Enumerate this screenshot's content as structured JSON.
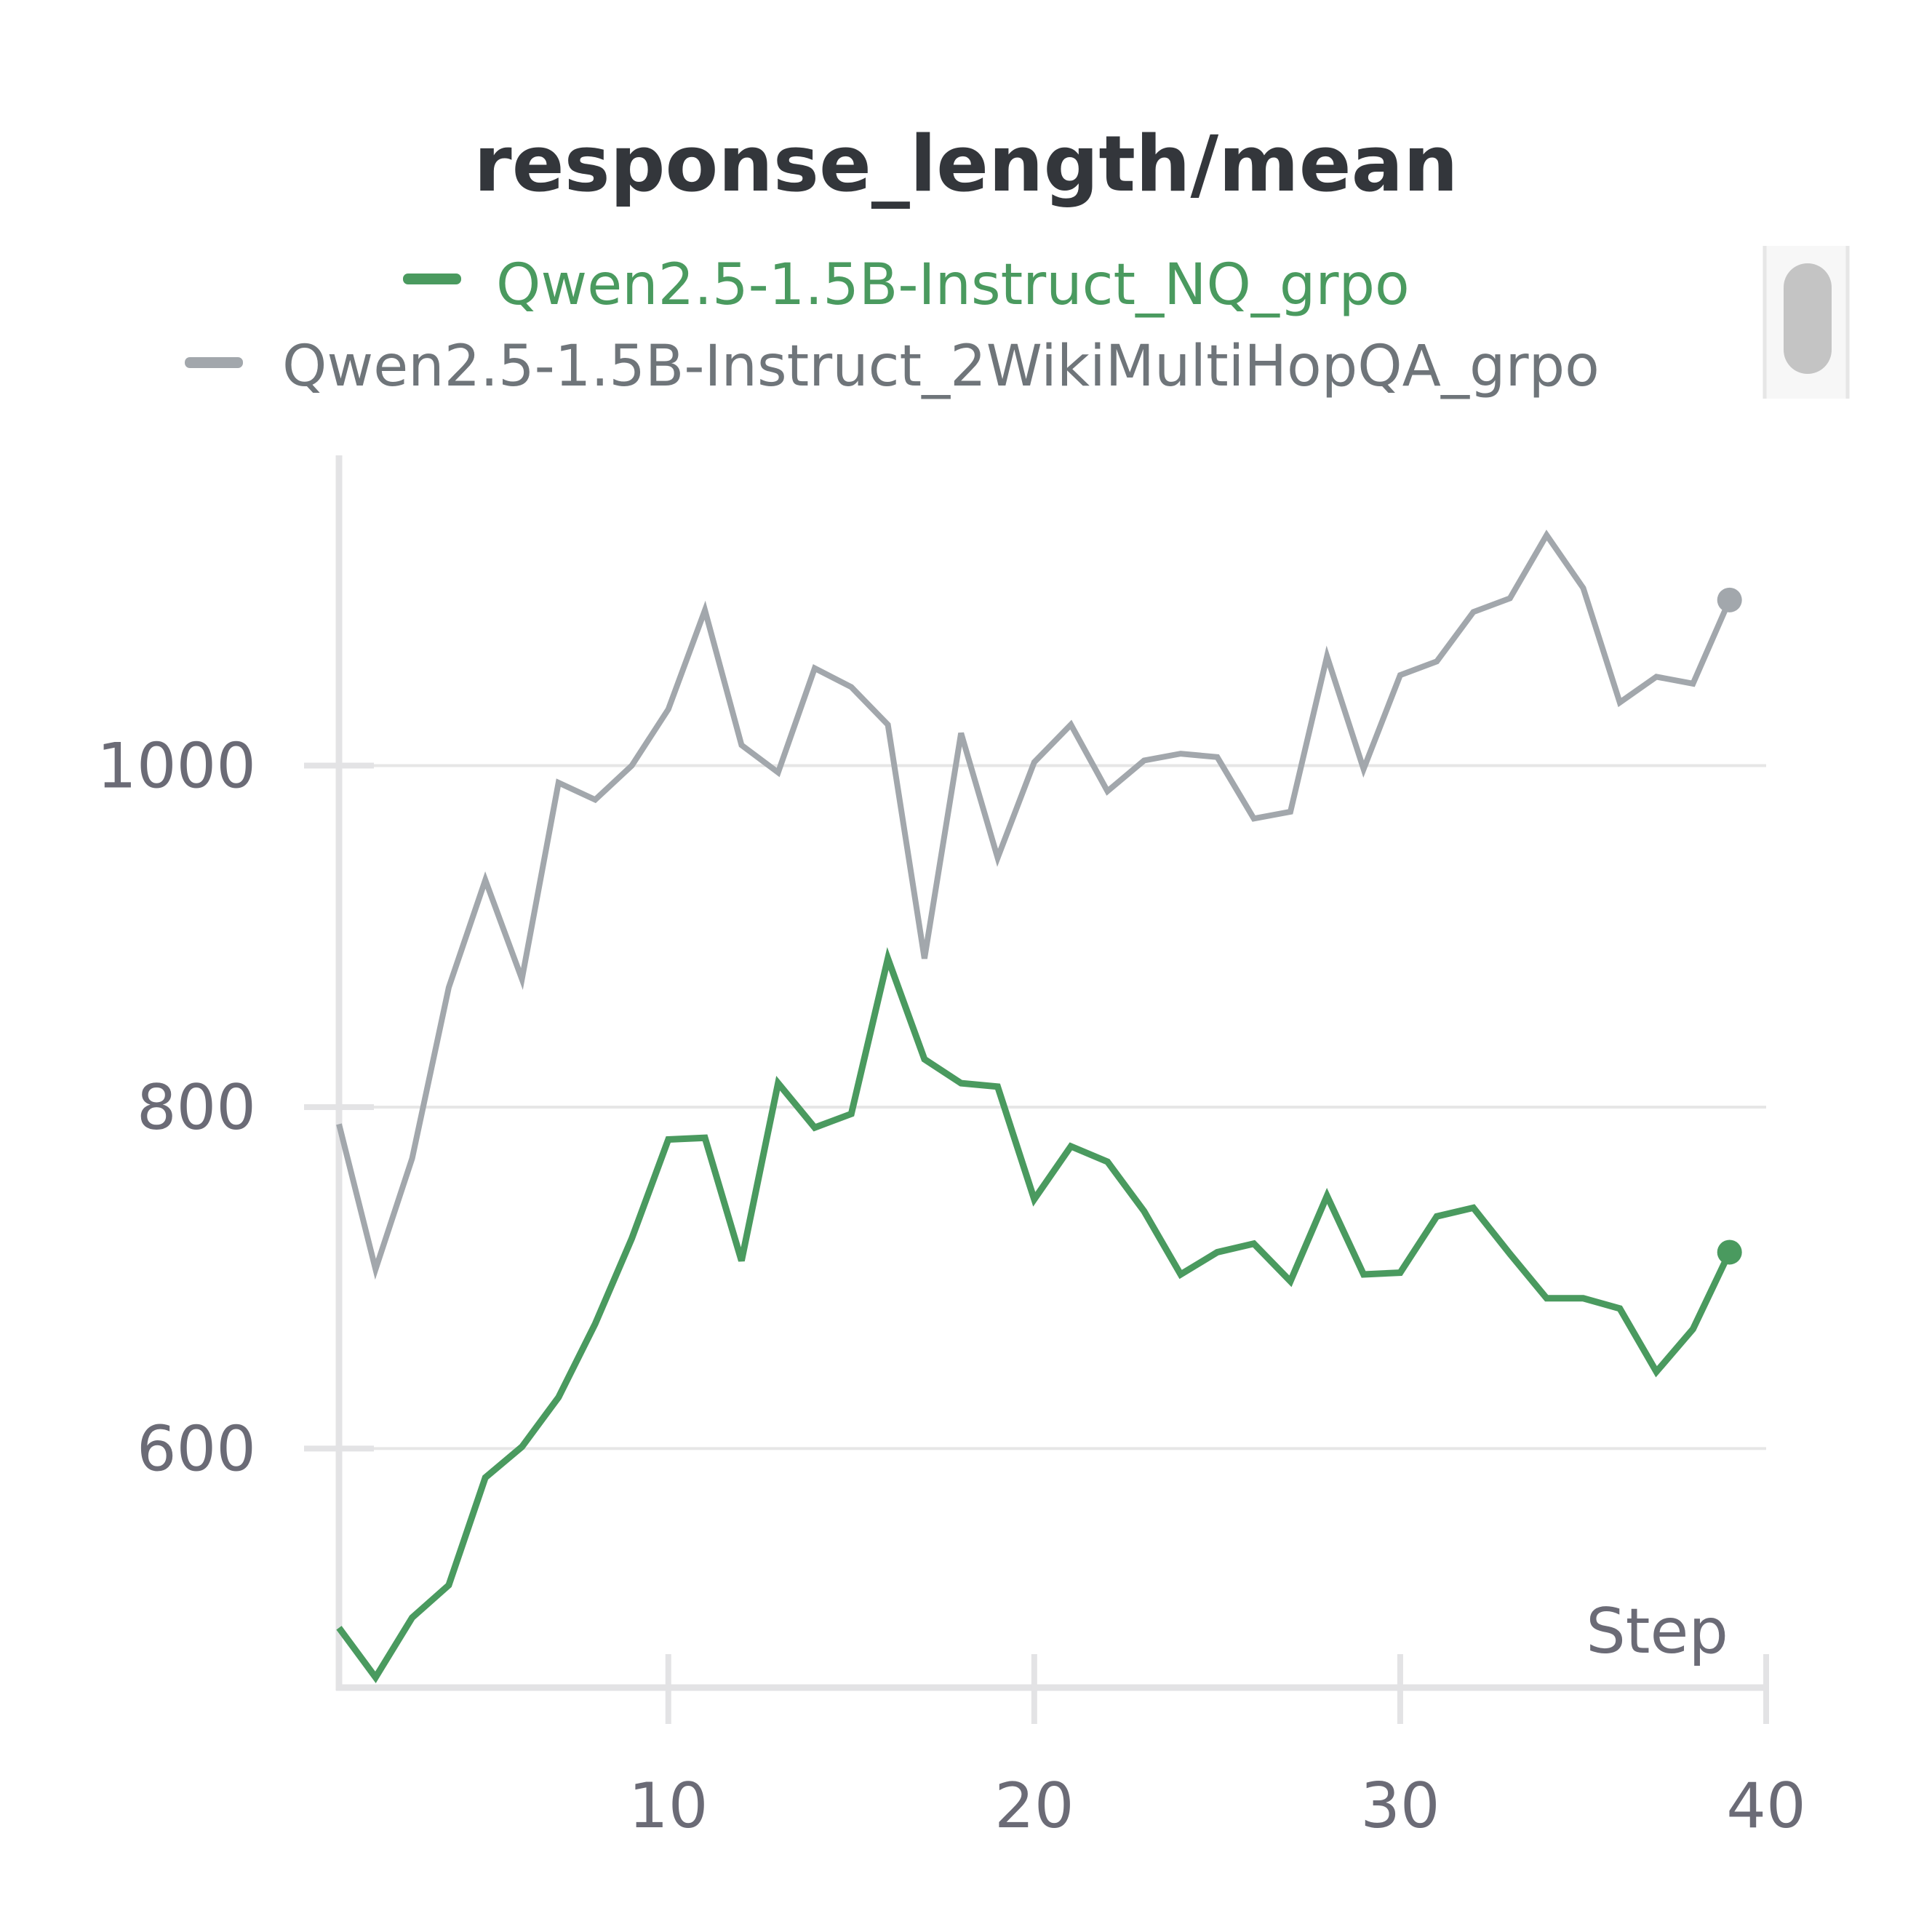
{
  "chart_data": {
    "type": "line",
    "title": "response_length/mean",
    "xlabel": "Step",
    "ylabel": "",
    "xlim": [
      1,
      40
    ],
    "ylim": [
      460,
      1180
    ],
    "xticks": [
      10,
      20,
      30,
      40
    ],
    "yticks": [
      600,
      800,
      1000
    ],
    "grid": true,
    "legend_position": "top",
    "series": [
      {
        "name": "Qwen2.5-1.5B-Instruct_NQ_grpo",
        "color": "#4a9a5f",
        "x": [
          1,
          2,
          3,
          4,
          5,
          6,
          7,
          8,
          9,
          10,
          11,
          12,
          13,
          14,
          15,
          16,
          17,
          18,
          19,
          20,
          21,
          22,
          23,
          24,
          25,
          26,
          27,
          28,
          29,
          30,
          31,
          32,
          33,
          34,
          35,
          36,
          37,
          38,
          39
        ],
        "values": [
          495,
          466,
          501,
          520,
          583,
          601,
          630,
          673,
          723,
          781,
          782,
          710,
          814,
          788,
          796,
          887,
          828,
          814,
          812,
          746,
          777,
          768,
          739,
          702,
          715,
          720,
          698,
          748,
          702,
          703,
          736,
          741,
          714,
          688,
          688,
          682,
          645,
          670,
          715
        ]
      },
      {
        "name": "Qwen2.5-1.5B-Instruct_2WikiMultiHopQA_grpo",
        "color": "#a2a7ac",
        "x": [
          1,
          2,
          3,
          4,
          5,
          6,
          7,
          8,
          9,
          10,
          11,
          12,
          13,
          14,
          15,
          16,
          17,
          18,
          19,
          20,
          21,
          22,
          23,
          24,
          25,
          26,
          27,
          28,
          29,
          30,
          31,
          32,
          33,
          34,
          35,
          36,
          37,
          38,
          39
        ],
        "values": [
          790,
          705,
          770,
          870,
          933,
          875,
          990,
          980,
          1000,
          1033,
          1091,
          1012,
          996,
          1057,
          1046,
          1024,
          887,
          1019,
          946,
          1002,
          1024,
          985,
          1003,
          1007,
          1005,
          969,
          973,
          1064,
          998,
          1053,
          1061,
          1090,
          1098,
          1135,
          1104,
          1037,
          1052,
          1048,
          1097
        ]
      }
    ]
  }
}
